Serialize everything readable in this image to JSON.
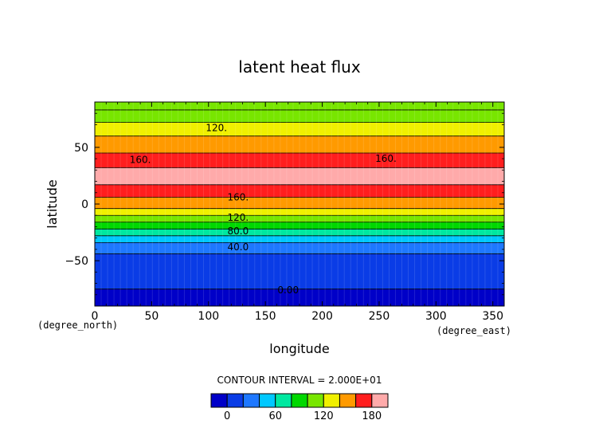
{
  "chart_data": {
    "type": "heatmap",
    "title": "latent heat flux",
    "xlabel": "longitude",
    "ylabel": "latitude",
    "x_unit": "(degree_east)",
    "y_unit": "(degree_north)",
    "xlim": [
      0,
      360
    ],
    "ylim": [
      -90,
      90
    ],
    "x_ticks": [
      0,
      50,
      100,
      150,
      200,
      250,
      300,
      350
    ],
    "x_tick_labels": [
      "0",
      "50",
      "100",
      "150",
      "200",
      "250",
      "300",
      "350"
    ],
    "y_ticks": [
      50,
      0,
      -50
    ],
    "y_tick_labels": [
      "50",
      "0",
      "−50"
    ],
    "contour_interval_text": "CONTOUR INTERVAL = 2.000E+01",
    "levels": [
      0,
      20,
      40,
      60,
      80,
      100,
      120,
      140,
      160,
      180
    ],
    "colorbar_colors": [
      "#0000c8",
      "#0a3ce6",
      "#1e78ff",
      "#00c8ff",
      "#00e8a0",
      "#00d800",
      "#78e600",
      "#f0f000",
      "#ff9a00",
      "#ff1e1e",
      "#ffaaaa"
    ],
    "colorbar_tick_labels": [
      "0",
      "60",
      "120",
      "180"
    ],
    "colorbar_tick_values": [
      0,
      60,
      120,
      180
    ],
    "latitude_bands": [
      {
        "lat_from": 90,
        "lat_to": 83,
        "value": 100
      },
      {
        "lat_from": 83,
        "lat_to": 72,
        "value": 110
      },
      {
        "lat_from": 72,
        "lat_to": 60,
        "value": 130
      },
      {
        "lat_from": 60,
        "lat_to": 45,
        "value": 150
      },
      {
        "lat_from": 45,
        "lat_to": 32,
        "value": 170
      },
      {
        "lat_from": 32,
        "lat_to": 17,
        "value": 190
      },
      {
        "lat_from": 17,
        "lat_to": 6,
        "value": 170
      },
      {
        "lat_from": 6,
        "lat_to": -4,
        "value": 150
      },
      {
        "lat_from": -4,
        "lat_to": -10,
        "value": 130
      },
      {
        "lat_from": -10,
        "lat_to": -16,
        "value": 110
      },
      {
        "lat_from": -16,
        "lat_to": -22,
        "value": 90
      },
      {
        "lat_from": -22,
        "lat_to": -28,
        "value": 70
      },
      {
        "lat_from": -28,
        "lat_to": -34,
        "value": 50
      },
      {
        "lat_from": -34,
        "lat_to": -44,
        "value": 30
      },
      {
        "lat_from": -44,
        "lat_to": -75,
        "value": 10
      },
      {
        "lat_from": -75,
        "lat_to": -90,
        "value": -10
      }
    ],
    "contour_labels": [
      {
        "text": "120.",
        "lon": 107,
        "lat": 67
      },
      {
        "text": "160.",
        "lon": 40,
        "lat": 39
      },
      {
        "text": "160.",
        "lon": 256,
        "lat": 40
      },
      {
        "text": "160.",
        "lon": 126,
        "lat": 6
      },
      {
        "text": "120.",
        "lon": 126,
        "lat": -12
      },
      {
        "text": "80.0",
        "lon": 126,
        "lat": -24
      },
      {
        "text": "40.0",
        "lon": 126,
        "lat": -38
      },
      {
        "text": "0.00",
        "lon": 170,
        "lat": -76
      }
    ]
  }
}
